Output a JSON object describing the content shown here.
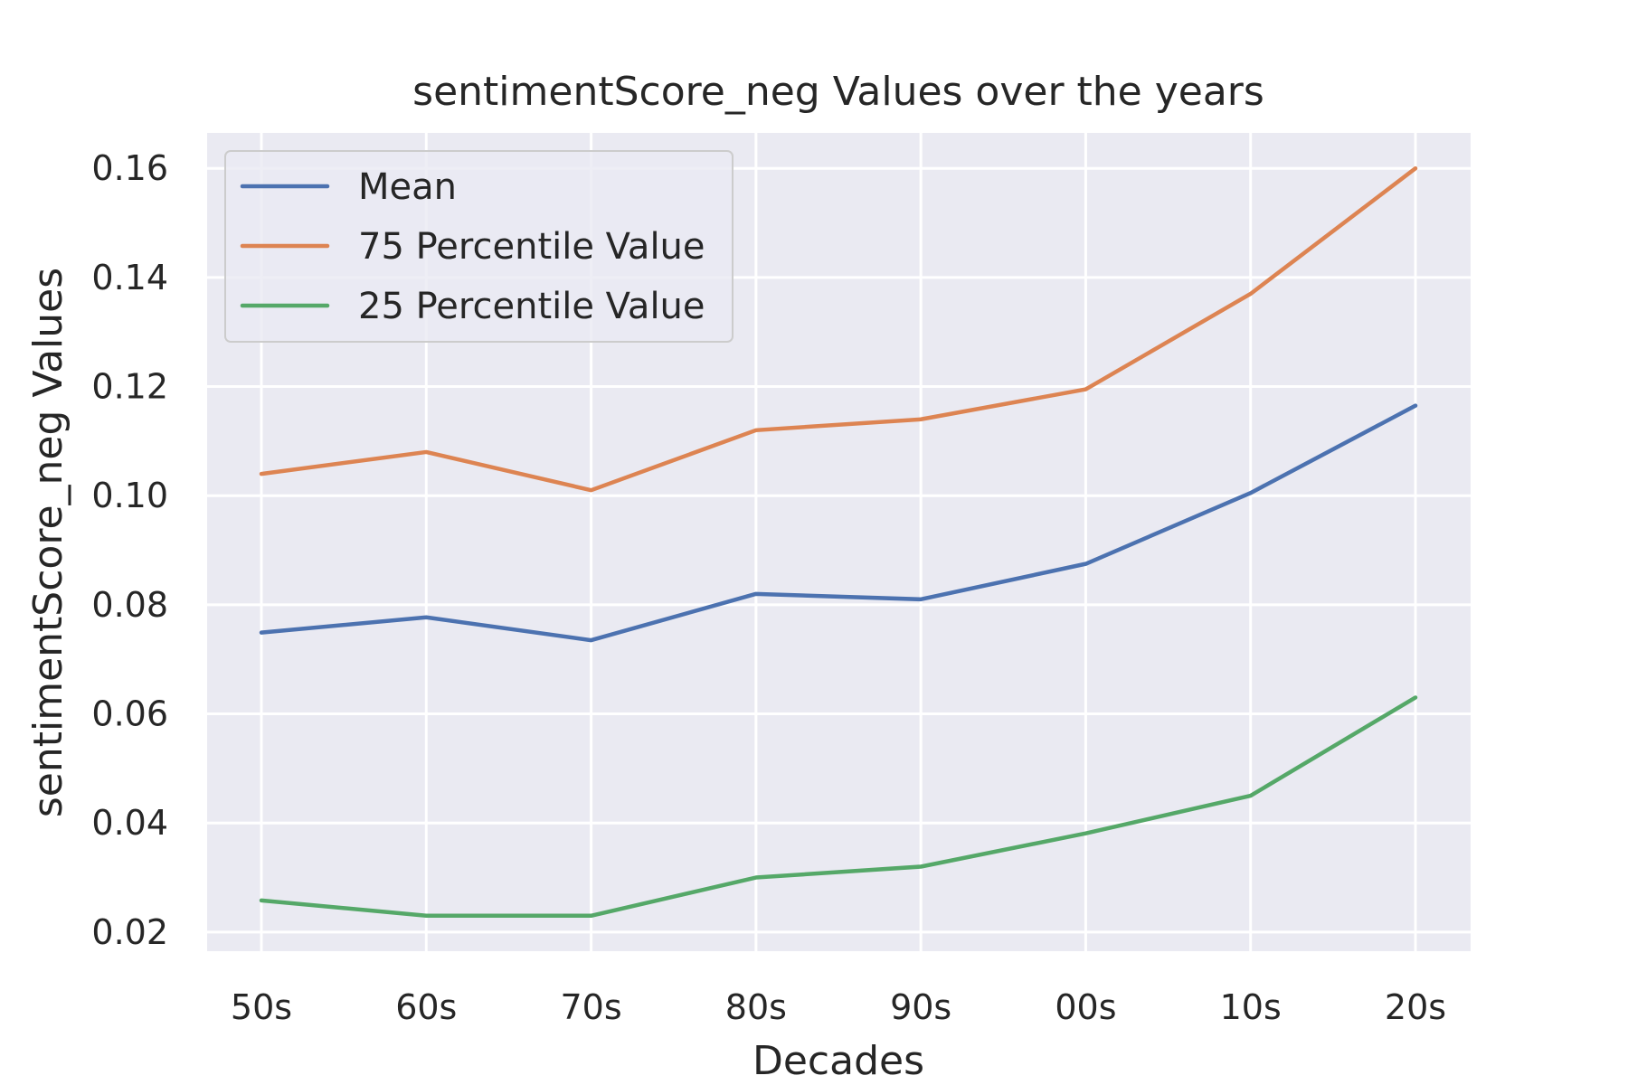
{
  "chart_data": {
    "type": "line",
    "title": "sentimentScore_neg Values over the years",
    "xlabel": "Decades",
    "ylabel": "sentimentScore_neg Values",
    "categories": [
      "50s",
      "60s",
      "70s",
      "80s",
      "90s",
      "00s",
      "10s",
      "20s"
    ],
    "y_ticks": [
      "0.02",
      "0.04",
      "0.06",
      "0.08",
      "0.10",
      "0.12",
      "0.14",
      "0.16"
    ],
    "ylim": [
      0.0165,
      0.1665
    ],
    "grid": true,
    "legend_position": "top-left",
    "background_color": "#eaeaf2",
    "series": [
      {
        "name": "Mean",
        "color": "#4c72b0",
        "values": [
          0.0749,
          0.0777,
          0.0735,
          0.082,
          0.081,
          0.0875,
          0.1005,
          0.1165
        ]
      },
      {
        "name": "75 Percentile Value",
        "color": "#dd8452",
        "values": [
          0.104,
          0.108,
          0.101,
          0.112,
          0.114,
          0.1195,
          0.137,
          0.16
        ]
      },
      {
        "name": "25 Percentile Value",
        "color": "#55a868",
        "values": [
          0.0258,
          0.023,
          0.023,
          0.03,
          0.032,
          0.0381,
          0.045,
          0.063
        ]
      }
    ]
  }
}
